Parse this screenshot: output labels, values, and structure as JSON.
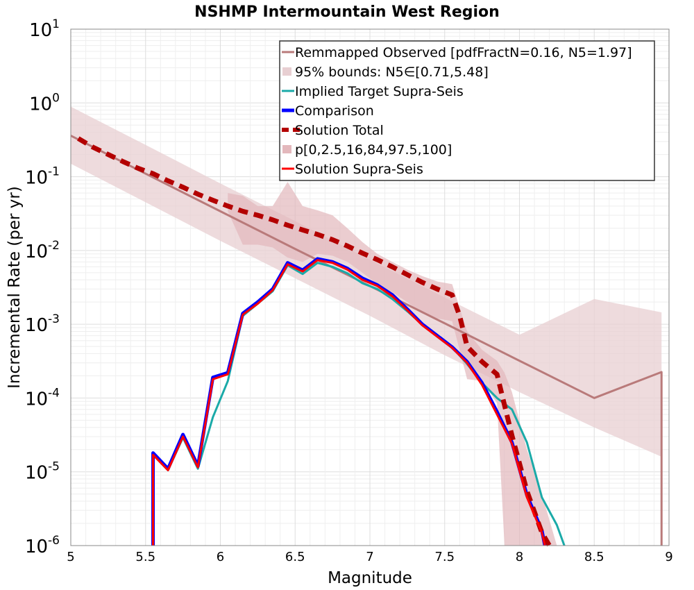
{
  "chart_data": {
    "type": "line",
    "title": "NSHMP Intermountain West Region",
    "xlabel": "Magnitude",
    "ylabel": "Incremental Rate (per yr)",
    "xlim": [
      5,
      9
    ],
    "ylim": [
      1e-06,
      10
    ],
    "yscale": "log",
    "grid": true,
    "legend_position": "top-right",
    "x_ticks": [
      "5",
      "5.5",
      "6",
      "6.5",
      "7",
      "7.5",
      "8",
      "8.5",
      "9"
    ],
    "y_ticks": [
      {
        "base": "10",
        "exp": "1"
      },
      {
        "base": "10",
        "exp": "0"
      },
      {
        "base": "10",
        "exp": "-1"
      },
      {
        "base": "10",
        "exp": "-2"
      },
      {
        "base": "10",
        "exp": "-3"
      },
      {
        "base": "10",
        "exp": "-4"
      },
      {
        "base": "10",
        "exp": "-5"
      },
      {
        "base": "10",
        "exp": "-6"
      }
    ],
    "bands": [
      {
        "name": "95% bounds: N5∈[0.71,5.48]",
        "color": "#e8cfd2",
        "x": [
          5.0,
          5.5,
          6.0,
          6.5,
          7.0,
          7.5,
          8.0,
          8.5,
          8.95
        ],
        "lower": [
          0.15,
          0.045,
          0.0135,
          0.0042,
          0.0013,
          0.00038,
          0.00012,
          4e-05,
          1.6e-05
        ],
        "upper": [
          0.89,
          0.27,
          0.081,
          0.025,
          0.0075,
          0.0023,
          0.00072,
          0.0022,
          0.00145
        ]
      },
      {
        "name": "p[0,2.5,16,84,97.5,100]",
        "color": "#e3b8bc",
        "x": [
          6.05,
          6.15,
          6.25,
          6.35,
          6.45,
          6.55,
          6.65,
          6.75,
          6.85,
          6.95,
          7.05,
          7.15,
          7.25,
          7.35,
          7.45,
          7.55,
          7.65,
          7.75,
          7.85,
          7.9,
          7.95,
          8.05,
          8.15,
          8.25
        ],
        "lower": [
          0.034,
          0.012,
          0.012,
          0.011,
          0.008,
          0.007,
          0.009,
          0.0085,
          0.007,
          0.005,
          0.0035,
          0.0027,
          0.002,
          0.0014,
          0.0012,
          0.0011,
          0.00018,
          0.00017,
          8.5e-05,
          1e-06,
          1e-06,
          1e-06,
          1e-06,
          1e-06
        ],
        "upper": [
          0.06,
          0.055,
          0.04,
          0.04,
          0.085,
          0.04,
          0.035,
          0.03,
          0.02,
          0.013,
          0.009,
          0.007,
          0.0055,
          0.0045,
          0.0038,
          0.0035,
          0.0008,
          0.00045,
          0.00032,
          0.00022,
          0.00012,
          2e-05,
          5e-06,
          1e-06
        ]
      }
    ],
    "series": [
      {
        "name": "Remmapped Observed [pdfFractN=0.16, N5=1.97]",
        "color": "#b97a7a",
        "width": 3,
        "dash": "",
        "x": [
          5.0,
          5.5,
          6.0,
          6.5,
          7.0,
          7.5,
          8.0,
          8.5,
          8.95,
          8.95
        ],
        "y": [
          0.36,
          0.11,
          0.034,
          0.0105,
          0.0033,
          0.00103,
          0.00032,
          0.0001,
          0.000225,
          1e-06
        ]
      },
      {
        "name": "Implied Target Supra-Seis",
        "color": "#1aaaa8",
        "width": 3,
        "dash": "",
        "x": [
          5.55,
          5.65,
          5.75,
          5.85,
          5.95,
          6.05,
          6.15,
          6.25,
          6.35,
          6.45,
          6.55,
          6.65,
          6.75,
          6.85,
          6.95,
          7.05,
          7.15,
          7.25,
          7.35,
          7.45,
          7.55,
          7.65,
          7.75,
          7.85,
          7.95,
          8.05,
          8.15,
          8.25,
          8.3
        ],
        "y": [
          1.7e-05,
          1.05e-05,
          2.9e-05,
          1.1e-05,
          5.5e-05,
          0.00017,
          0.0013,
          0.0019,
          0.0028,
          0.0063,
          0.0048,
          0.0068,
          0.006,
          0.0049,
          0.0036,
          0.003,
          0.0022,
          0.0015,
          0.00099,
          0.00071,
          0.00049,
          0.00029,
          0.00016,
          0.0001,
          7e-05,
          2.5e-05,
          4.5e-06,
          1.9e-06,
          1e-06
        ]
      },
      {
        "name": "Comparison",
        "color": "#0000ff",
        "width": 5,
        "dash": "",
        "x": [
          5.55,
          5.55,
          5.65,
          5.75,
          5.85,
          5.95,
          6.05,
          6.15,
          6.25,
          6.35,
          6.45,
          6.55,
          6.65,
          6.75,
          6.85,
          6.95,
          7.05,
          7.15,
          7.25,
          7.35,
          7.45,
          7.55,
          7.65,
          7.75,
          7.85,
          7.95,
          8.05,
          8.15,
          8.17
        ],
        "y": [
          1e-06,
          1.8e-05,
          1.1e-05,
          3.2e-05,
          1.2e-05,
          0.00019,
          0.00022,
          0.0014,
          0.002,
          0.003,
          0.0068,
          0.0054,
          0.0077,
          0.007,
          0.0057,
          0.0042,
          0.0034,
          0.0025,
          0.0016,
          0.001,
          0.0007,
          0.00049,
          0.00031,
          0.00016,
          6.5e-05,
          2.5e-05,
          4.8e-06,
          1.6e-06,
          1e-06
        ]
      },
      {
        "name": "Solution Total",
        "color": "#b30000",
        "width": 7,
        "dash": "14,9",
        "x": [
          5.05,
          5.15,
          5.25,
          5.35,
          5.45,
          5.55,
          5.65,
          5.75,
          5.85,
          5.95,
          6.05,
          6.15,
          6.25,
          6.35,
          6.45,
          6.55,
          6.65,
          6.75,
          6.85,
          6.95,
          7.05,
          7.15,
          7.25,
          7.35,
          7.45,
          7.55,
          7.6,
          7.65,
          7.75,
          7.85,
          7.9,
          7.95,
          8.05,
          8.15,
          8.2
        ],
        "y": [
          0.33,
          0.25,
          0.2,
          0.16,
          0.13,
          0.11,
          0.088,
          0.072,
          0.058,
          0.048,
          0.04,
          0.034,
          0.03,
          0.026,
          0.022,
          0.019,
          0.0165,
          0.014,
          0.0115,
          0.0092,
          0.0075,
          0.006,
          0.0047,
          0.0037,
          0.003,
          0.0025,
          0.0013,
          0.0005,
          0.00031,
          0.00021,
          8e-05,
          3.1e-05,
          5.5e-06,
          1.5e-06,
          1e-06
        ]
      },
      {
        "name": "Solution Supra-Seis",
        "color": "#ff0000",
        "width": 3,
        "dash": "",
        "x": [
          5.55,
          5.55,
          5.65,
          5.75,
          5.85,
          5.95,
          6.05,
          6.15,
          6.25,
          6.35,
          6.45,
          6.55,
          6.65,
          6.75,
          6.85,
          6.95,
          7.05,
          7.15,
          7.25,
          7.35,
          7.45,
          7.55,
          7.65,
          7.75,
          7.85,
          7.95,
          8.05,
          8.15,
          8.17
        ],
        "y": [
          1e-06,
          1.7e-05,
          1.05e-05,
          3e-05,
          1.15e-05,
          0.00018,
          0.00021,
          0.00135,
          0.0019,
          0.0029,
          0.0065,
          0.0052,
          0.0074,
          0.0068,
          0.0055,
          0.004,
          0.0033,
          0.0024,
          0.00155,
          0.00097,
          0.00068,
          0.00048,
          0.0003,
          0.00015,
          6e-05,
          2.4e-05,
          4.5e-06,
          1.5e-06,
          1e-06
        ]
      }
    ],
    "legend": [
      {
        "label": "Remmapped Observed [pdfFractN=0.16, N5=1.97]",
        "kind": "line",
        "color": "#b97a7a",
        "dash": "",
        "width": 3
      },
      {
        "label": "95% bounds: N5∈[0.71,5.48]",
        "kind": "band",
        "color": "#e8cfd2"
      },
      {
        "label": "Implied Target Supra-Seis",
        "kind": "line",
        "color": "#1aaaa8",
        "dash": "",
        "width": 3
      },
      {
        "label": "Comparison",
        "kind": "line",
        "color": "#0000ff",
        "dash": "",
        "width": 5
      },
      {
        "label": "Solution Total",
        "kind": "line",
        "color": "#b30000",
        "dash": "10,6",
        "width": 6
      },
      {
        "label": "p[0,2.5,16,84,97.5,100]",
        "kind": "band",
        "color": "#e3b8bc"
      },
      {
        "label": "Solution Supra-Seis",
        "kind": "line",
        "color": "#ff0000",
        "dash": "",
        "width": 3
      }
    ]
  }
}
